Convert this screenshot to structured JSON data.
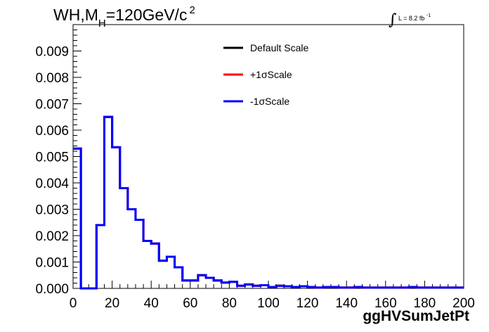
{
  "header": {
    "title_prefix": "WH,M",
    "title_sub": "H",
    "title_mid": "=120GeV/c",
    "title_sup": "2",
    "lumi_text": "L = 8.2 fb",
    "lumi_exp": "-1"
  },
  "legend": [
    {
      "label": "Default Scale",
      "color": "#000000"
    },
    {
      "label": "+1σScale",
      "color": "#ff0000"
    },
    {
      "label": "-1σScale",
      "color": "#0000ff"
    }
  ],
  "chart_data": {
    "type": "histogram",
    "xlabel": "ggHVSumJetPt",
    "ylabel": "",
    "xlim": [
      0,
      200
    ],
    "ylim": [
      0,
      0.01
    ],
    "x_ticks": [
      0,
      20,
      40,
      60,
      80,
      100,
      120,
      140,
      160,
      180,
      200
    ],
    "y_ticks": [
      "0.000",
      "0.001",
      "0.002",
      "0.003",
      "0.004",
      "0.005",
      "0.006",
      "0.007",
      "0.008",
      "0.009"
    ],
    "bin_width": 4,
    "bin_edges_start": 0,
    "series": [
      {
        "name": "Default Scale",
        "color": "#000000",
        "values": [
          0.0053,
          0.0,
          0.0,
          0.0024,
          0.0065,
          0.00535,
          0.0038,
          0.003,
          0.0026,
          0.0018,
          0.0017,
          0.00105,
          0.0012,
          0.0008,
          0.0003,
          0.0003,
          0.0005,
          0.0004,
          0.0003,
          0.00022,
          0.00025,
          0.0001,
          0.00015,
          0.0001,
          0.00012,
          5e-05,
          0.0001,
          8e-05,
          5e-05,
          8e-05,
          5e-05,
          3e-05,
          5e-05,
          5e-05,
          3e-05,
          3e-05,
          5e-05,
          3e-05,
          3e-05,
          3e-05,
          3e-05,
          3e-05,
          3e-05,
          5e-05,
          3e-05,
          3e-05,
          3e-05,
          3e-05,
          3e-05,
          3e-05
        ]
      },
      {
        "name": "+1σScale",
        "color": "#ff0000",
        "values": [
          0.0053,
          0.0,
          0.0,
          0.0024,
          0.0065,
          0.00535,
          0.0038,
          0.003,
          0.0026,
          0.0018,
          0.0017,
          0.00105,
          0.0012,
          0.0008,
          0.0003,
          0.0003,
          0.0005,
          0.0004,
          0.0003,
          0.00022,
          0.00025,
          0.0001,
          0.00015,
          0.0001,
          0.00012,
          5e-05,
          0.0001,
          8e-05,
          5e-05,
          8e-05,
          5e-05,
          3e-05,
          5e-05,
          5e-05,
          3e-05,
          3e-05,
          5e-05,
          3e-05,
          3e-05,
          3e-05,
          3e-05,
          3e-05,
          3e-05,
          5e-05,
          3e-05,
          3e-05,
          3e-05,
          3e-05,
          3e-05,
          3e-05
        ]
      },
      {
        "name": "-1σScale",
        "color": "#0000ff",
        "values": [
          0.0053,
          0.0,
          0.0,
          0.0024,
          0.0065,
          0.00535,
          0.0038,
          0.003,
          0.0026,
          0.0018,
          0.0017,
          0.00105,
          0.0012,
          0.0008,
          0.0003,
          0.0003,
          0.0005,
          0.0004,
          0.0003,
          0.00022,
          0.00025,
          0.0001,
          0.00015,
          0.0001,
          0.00012,
          5e-05,
          0.0001,
          8e-05,
          5e-05,
          8e-05,
          5e-05,
          3e-05,
          5e-05,
          5e-05,
          3e-05,
          3e-05,
          5e-05,
          3e-05,
          3e-05,
          3e-05,
          3e-05,
          3e-05,
          3e-05,
          5e-05,
          3e-05,
          3e-05,
          3e-05,
          3e-05,
          3e-05,
          3e-05
        ]
      }
    ]
  }
}
